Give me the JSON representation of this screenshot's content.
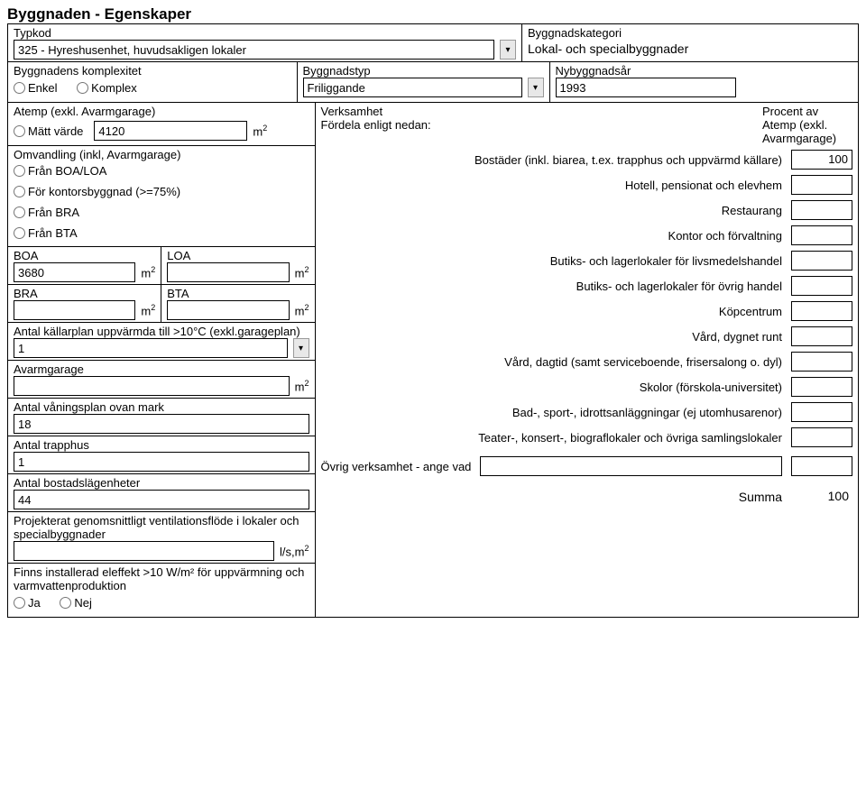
{
  "title": "Byggnaden - Egenskaper",
  "typkod": {
    "label": "Typkod",
    "value": "325 - Hyreshusenhet, huvudsakligen lokaler"
  },
  "byggnadskategori": {
    "label": "Byggnadskategori",
    "value": "Lokal- och specialbyggnader"
  },
  "komplexitet": {
    "label": "Byggnadens komplexitet",
    "opt_enkel": "Enkel",
    "opt_komplex": "Komplex"
  },
  "byggnadstyp": {
    "label": "Byggnadstyp",
    "value": "Friliggande"
  },
  "nybyggnadsar": {
    "label": "Nybyggnadsår",
    "value": "1993"
  },
  "atemp": {
    "label": "Atemp (exkl. Avarmgarage)",
    "matt_varde": "Mätt värde",
    "value": "4120"
  },
  "omvandling": {
    "label": "Omvandling (inkl, Avarmgarage)",
    "boa_loa": "Från BOA/LOA",
    "kontors": "För kontorsbyggnad (>=75%)",
    "bra": "Från BRA",
    "bta": "Från BTA"
  },
  "areas": {
    "boa_label": "BOA",
    "boa_value": "3680",
    "loa_label": "LOA",
    "bra_label": "BRA",
    "bta_label": "BTA"
  },
  "kallarplan": {
    "label": "Antal källarplan uppvärmda till >10°C (exkl.garageplan)",
    "value": "1"
  },
  "avarmgarage_label": "Avarmgarage",
  "vaningsplan": {
    "label": "Antal våningsplan ovan mark",
    "value": "18"
  },
  "trapphus": {
    "label": "Antal trapphus",
    "value": "1"
  },
  "bostadslagenheter": {
    "label": "Antal bostadslägenheter",
    "value": "44"
  },
  "ventilation": {
    "label": "Projekterat genomsnittligt ventilationsflöde i lokaler och specialbyggnader"
  },
  "eleffekt": {
    "label": "Finns installerad eleffekt >10 W/m² för uppvärmning och varmvattenproduktion",
    "ja": "Ja",
    "nej": "Nej"
  },
  "verksamhet": {
    "heading": "Verksamhet",
    "subheading": "Fördela enligt nedan:",
    "pct_heading": "Procent av Atemp (exkl. Avarmgarage)",
    "items": [
      {
        "label": "Bostäder (inkl. biarea, t.ex. trapphus och uppvärmd källare)",
        "value": "100"
      },
      {
        "label": "Hotell, pensionat och elevhem",
        "value": ""
      },
      {
        "label": "Restaurang",
        "value": ""
      },
      {
        "label": "Kontor och förvaltning",
        "value": ""
      },
      {
        "label": "Butiks- och lagerlokaler för livsmedelshandel",
        "value": ""
      },
      {
        "label": "Butiks- och lagerlokaler för övrig handel",
        "value": ""
      },
      {
        "label": "Köpcentrum",
        "value": ""
      },
      {
        "label": "Vård, dygnet runt",
        "value": ""
      },
      {
        "label": "Vård, dagtid (samt serviceboende, frisersalong o. dyl)",
        "value": ""
      },
      {
        "label": "Skolor (förskola-universitet)",
        "value": ""
      },
      {
        "label": "Bad-, sport-, idrottsanläggningar (ej utomhusarenor)",
        "value": ""
      },
      {
        "label": "Teater-, konsert-, biograflokaler och övriga samlingslokaler",
        "value": ""
      }
    ],
    "ovrig_label": "Övrig verksamhet - ange vad",
    "summa_label": "Summa",
    "summa_value": "100"
  },
  "units": {
    "m2": "m",
    "lsm2": "l/s,m"
  },
  "dropdown_glyph": "▾"
}
